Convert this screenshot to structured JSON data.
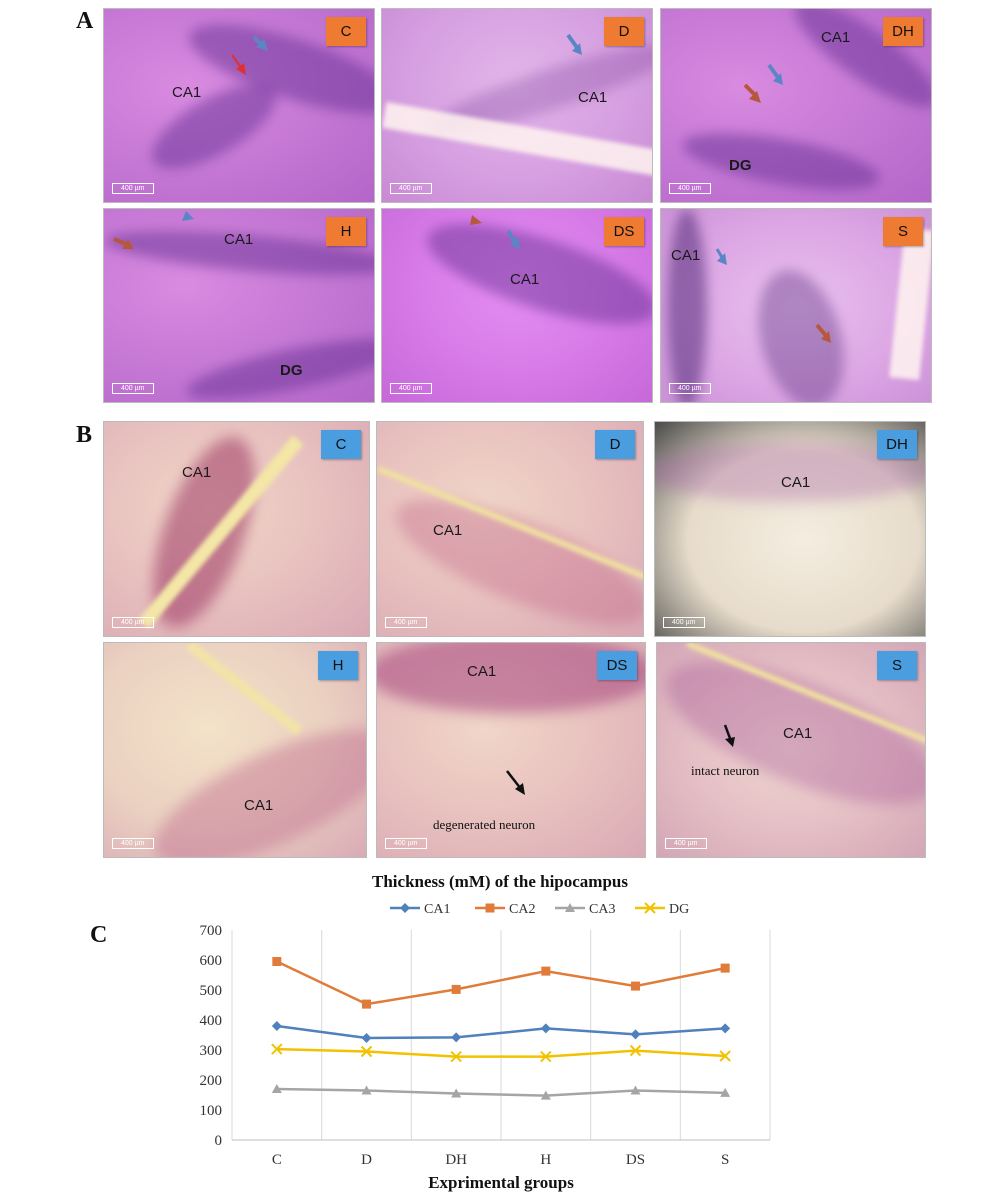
{
  "figure": {
    "section_a_label": "A",
    "section_b_label": "B",
    "section_c_label": "C"
  },
  "panels_a": [
    {
      "tag": "C",
      "regions": [
        "CA1"
      ]
    },
    {
      "tag": "D",
      "regions": [
        "CA1"
      ]
    },
    {
      "tag": "DH",
      "regions": [
        "CA1",
        "DG"
      ]
    },
    {
      "tag": "H",
      "regions": [
        "CA1",
        "DG"
      ]
    },
    {
      "tag": "DS",
      "regions": [
        "CA1"
      ]
    },
    {
      "tag": "S",
      "regions": [
        "CA1"
      ]
    }
  ],
  "panels_b": [
    {
      "tag": "C",
      "regions": [
        "CA1"
      ]
    },
    {
      "tag": "D",
      "regions": [
        "CA1"
      ]
    },
    {
      "tag": "DH",
      "regions": [
        "CA1"
      ]
    },
    {
      "tag": "H",
      "regions": [
        "CA1"
      ]
    },
    {
      "tag": "DS",
      "regions": [
        "CA1"
      ],
      "annotation": "degenerated neuron"
    },
    {
      "tag": "S",
      "regions": [
        "CA1"
      ],
      "annotation": "intact neuron"
    }
  ],
  "scale_bar_text": "400 µm",
  "colors": {
    "he_tag": "#ef7b33",
    "b_tag": "#4a9ee0",
    "arrow_blue": "#5b86c6",
    "arrow_red": "#e23030",
    "arrow_brown": "#b5583c",
    "arrow_black": "#111111"
  },
  "chart_data": {
    "type": "line",
    "title": "Thickness (mM) of the hipocampus",
    "xlabel": "Exprimental groups",
    "ylabel": "",
    "categories": [
      "C",
      "D",
      "DH",
      "H",
      "DS",
      "S"
    ],
    "ylim": [
      0,
      700
    ],
    "yticks": [
      0,
      100,
      200,
      300,
      400,
      500,
      600,
      700
    ],
    "legend_position": "top",
    "grid": "vertical",
    "series": [
      {
        "name": "CA1",
        "color": "#4f81bd",
        "marker": "diamond",
        "values": [
          380,
          340,
          342,
          372,
          352,
          372
        ]
      },
      {
        "name": "CA2",
        "color": "#e07b39",
        "marker": "square",
        "values": [
          595,
          453,
          502,
          563,
          513,
          573
        ]
      },
      {
        "name": "CA3",
        "color": "#a5a5a5",
        "marker": "triangle",
        "values": [
          170,
          165,
          155,
          148,
          165,
          157
        ]
      },
      {
        "name": "DG",
        "color": "#f2c200",
        "marker": "x",
        "values": [
          303,
          295,
          278,
          278,
          298,
          280
        ]
      }
    ]
  }
}
